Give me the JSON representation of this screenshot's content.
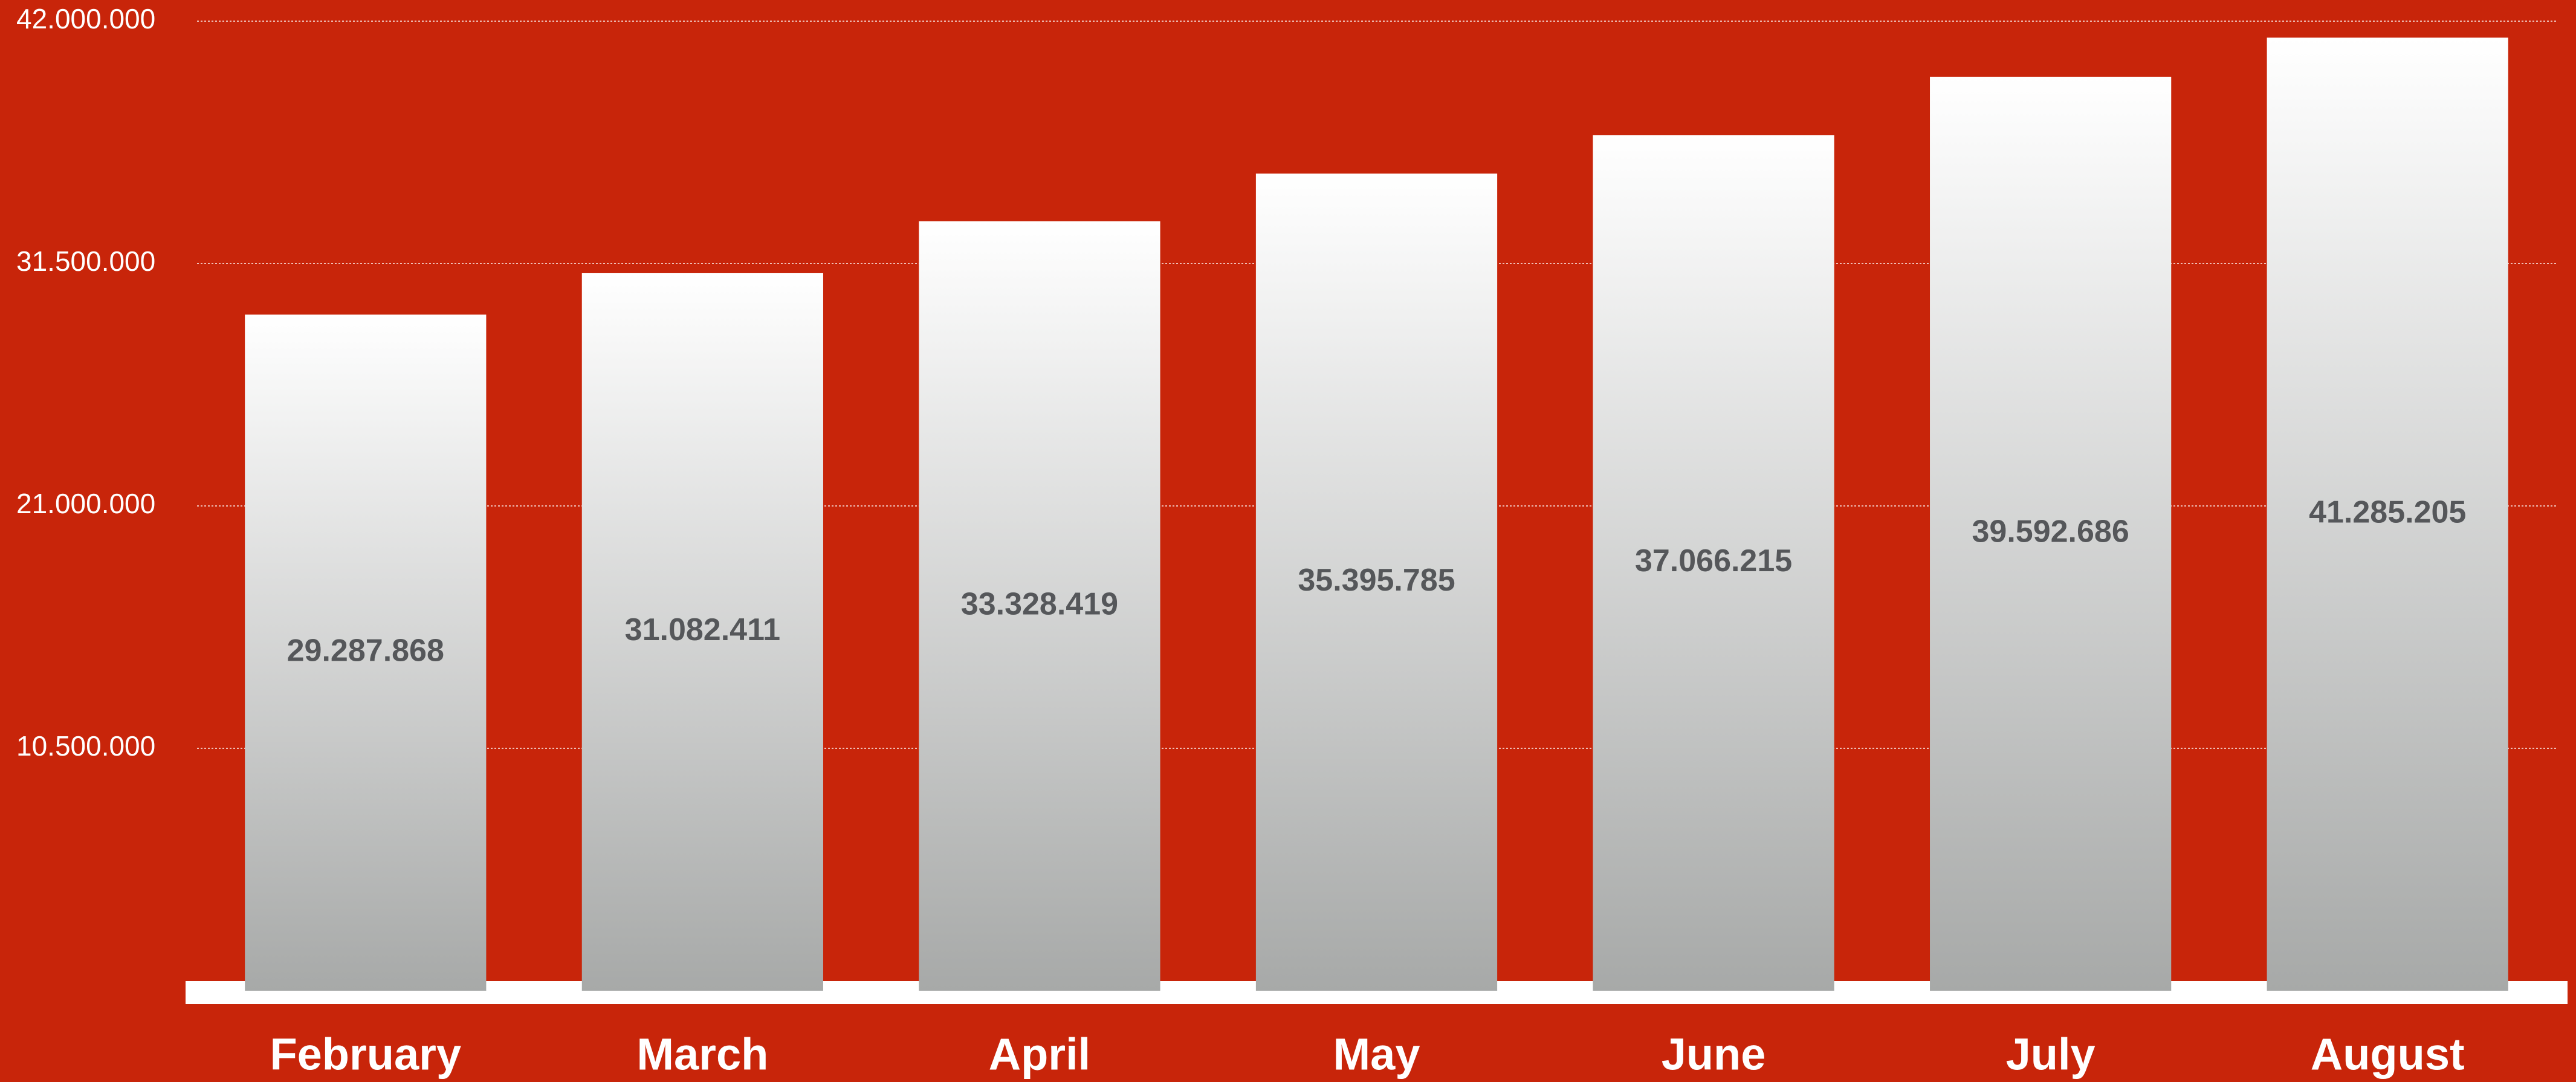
{
  "chart_data": {
    "type": "bar",
    "categories": [
      "February",
      "March",
      "April",
      "May",
      "June",
      "July",
      "August"
    ],
    "values": [
      29287868,
      31082411,
      33328419,
      35395785,
      37066215,
      39592686,
      41285205
    ],
    "value_labels": [
      "29.287.868",
      "31.082.411",
      "33.328.419",
      "35.395.785",
      "37.066.215",
      "39.592.686",
      "41.285.205"
    ],
    "ylim": [
      0,
      42000000
    ],
    "yticks": [
      {
        "value": 10500000,
        "label": "10.500.000"
      },
      {
        "value": 21000000,
        "label": "21.000.000"
      },
      {
        "value": 31500000,
        "label": "31.500.000"
      },
      {
        "value": 42000000,
        "label": "42.000.000"
      }
    ],
    "grid": true,
    "background": "#c8250a",
    "color": "#ffffff"
  }
}
